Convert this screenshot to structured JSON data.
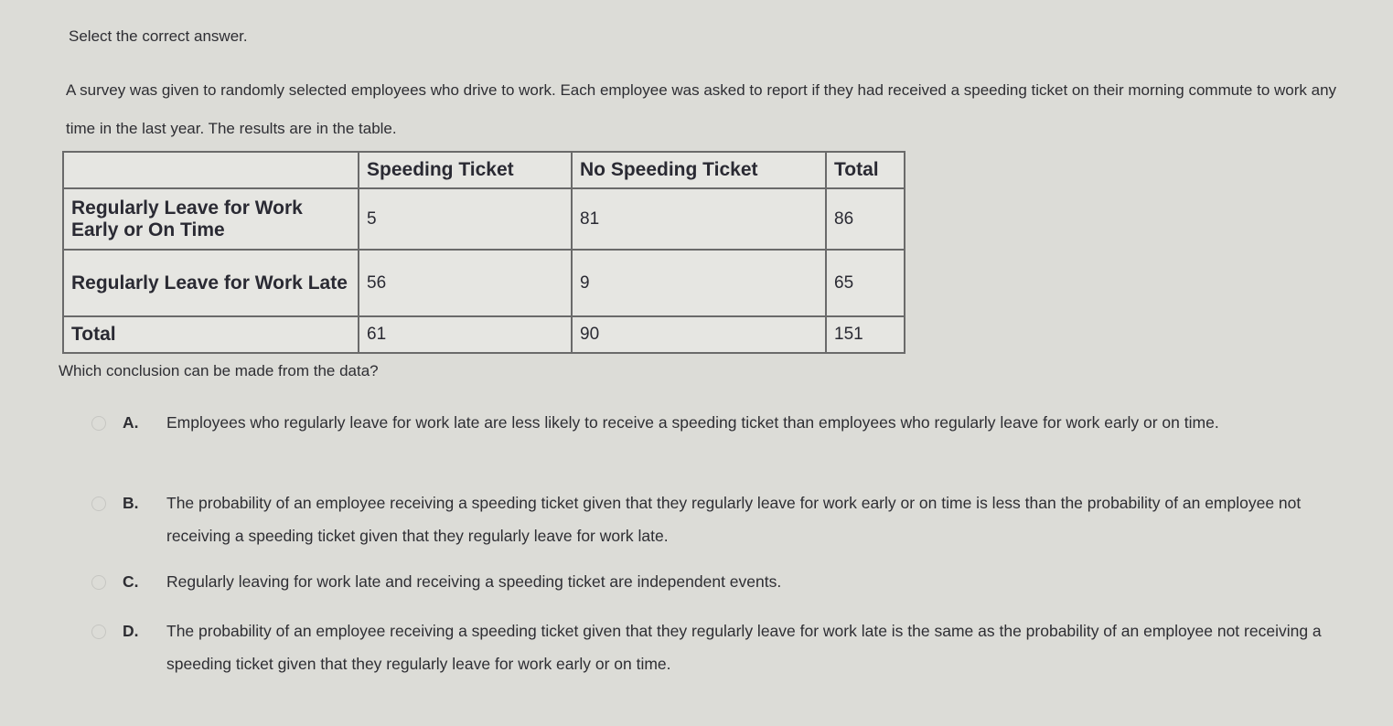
{
  "instruction": "Select the correct answer.",
  "prompt": "A survey was given to randomly selected employees who drive to work. Each employee was asked to report if they had received a speeding ticket on their morning commute to work any time in the last year. The results are in the table.",
  "table": {
    "headers": [
      "",
      "Speeding Ticket",
      "No Speeding Ticket",
      "Total"
    ],
    "rows": [
      {
        "label": "Regularly Leave for Work Early or On Time",
        "values": [
          "5",
          "81",
          "86"
        ]
      },
      {
        "label": "Regularly Leave for Work Late",
        "values": [
          "56",
          "9",
          "65"
        ]
      },
      {
        "label": "Total",
        "values": [
          "61",
          "90",
          "151"
        ]
      }
    ]
  },
  "question": "Which conclusion can be made from the data?",
  "options": [
    {
      "letter": "A.",
      "text": "Employees who regularly leave for work late are less likely to receive a speeding ticket than employees who regularly leave for work early or on time."
    },
    {
      "letter": "B.",
      "text": "The probability of an employee receiving a speeding ticket given that they regularly leave for work early or on time is less than the probability of an employee not receiving a speeding ticket given that they regularly leave for work late."
    },
    {
      "letter": "C.",
      "text": "Regularly leaving for work late and receiving a speeding ticket are independent events."
    },
    {
      "letter": "D.",
      "text": "The probability of an employee receiving a speeding ticket given that they regularly leave for work late is the same as the probability of an employee not receiving a speeding ticket given that they regularly leave for work early or on time."
    }
  ]
}
